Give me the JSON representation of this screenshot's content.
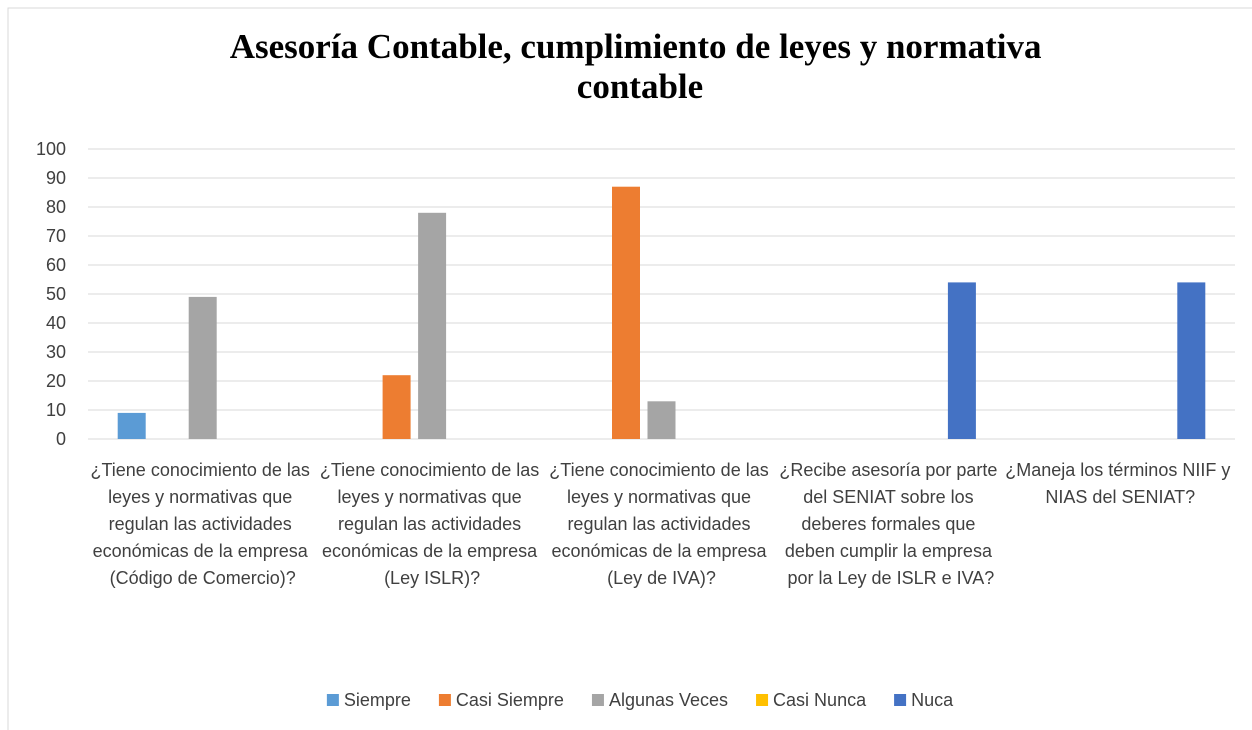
{
  "chart_data": {
    "type": "bar",
    "title": "Asesoría Contable, cumplimiento de leyes y normativa contable",
    "categories": [
      "¿Tiene conocimiento de las leyes y normativas que regulan las actividades económicas de la empresa (Código de Comercio)?",
      "¿Tiene conocimiento de las leyes y normativas que regulan las actividades económicas de la empresa (Ley ISLR)?",
      "¿Tiene conocimiento de las leyes y normativas que regulan las actividades económicas de la empresa (Ley de IVA)?",
      "¿Recibe asesoría por parte del SENIAT sobre los deberes formales que deben cumplir la empresa por la Ley de ISLR e IVA?",
      "¿Maneja los términos NIIF y NIAS del SENIAT?"
    ],
    "series": [
      {
        "name": "Siempre",
        "color": "#5b9bd5",
        "values": [
          9,
          0,
          0,
          0,
          0
        ]
      },
      {
        "name": "Casi Siempre",
        "color": "#ed7d31",
        "values": [
          0,
          22,
          87,
          0,
          0
        ]
      },
      {
        "name": "Algunas Veces",
        "color": "#a5a5a5",
        "values": [
          49,
          78,
          13,
          0,
          0
        ]
      },
      {
        "name": "Casi Nunca",
        "color": "#ffc000",
        "values": [
          0,
          0,
          0,
          0,
          0
        ]
      },
      {
        "name": "Nuca",
        "color": "#4472c4",
        "values": [
          0,
          0,
          0,
          54,
          54
        ]
      }
    ],
    "ylim": [
      0,
      100
    ],
    "yticks": [
      0,
      10,
      20,
      30,
      40,
      50,
      60,
      70,
      80,
      90,
      100
    ],
    "grid": true,
    "legend": "bottom"
  }
}
